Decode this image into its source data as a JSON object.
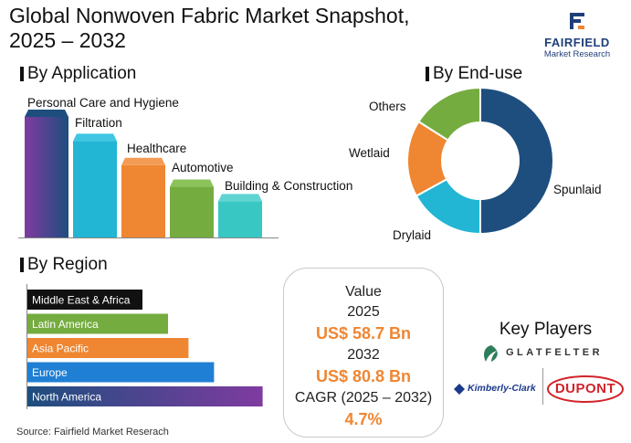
{
  "title_line1": "Global Nonwoven Fabric Market Snapshot,",
  "title_line2": "2025 – 2032",
  "logo": {
    "name": "FAIRFIELD",
    "sub": "Market Research",
    "icon": "fairfield-f-logo-icon"
  },
  "colors": {
    "navy": "#1d4e7e",
    "teal": "#22b5d4",
    "orange": "#ef8632",
    "green": "#75ac3f",
    "cyan": "#39c7c4",
    "purple": "#7f3ba0",
    "black": "#111111",
    "blue": "#1f7fd4",
    "value_orange": "#ef8632"
  },
  "chart_data": [
    {
      "type": "bar",
      "title": "By Application",
      "categories": [
        "Personal Care and Hygiene",
        "Filtration",
        "Healthcare",
        "Automotive",
        "Building & Construction"
      ],
      "values": [
        100,
        80,
        60,
        42,
        30
      ],
      "ylim": [
        0,
        100
      ],
      "grid": false,
      "legend": "none",
      "note": "relative values, unlabelled axis"
    },
    {
      "type": "pie",
      "title": "By End-use",
      "style": "donut",
      "categories": [
        "Spunlaid",
        "Drylaid",
        "Wetlaid",
        "Others"
      ],
      "values": [
        50,
        17,
        17,
        16
      ],
      "legend": "labels-outside"
    },
    {
      "type": "bar",
      "orientation": "horizontal",
      "title": "By Region",
      "categories": [
        "Middle East & Africa",
        "Latin America",
        "Asia Pacific",
        "Europe",
        "North America"
      ],
      "values": [
        45,
        55,
        63,
        73,
        92
      ],
      "xlim": [
        0,
        100
      ],
      "grid": false,
      "legend": "none",
      "note": "relative values, unlabelled axis"
    }
  ],
  "value_box": {
    "value_label": "Value",
    "year1": "2025",
    "value1": "US$ 58.7 Bn",
    "year2": "2032",
    "value2": "US$ 80.8 Bn",
    "cagr_label": "CAGR (2025 – 2032)",
    "cagr_value": "4.7%"
  },
  "key_players": {
    "title": "Key Players",
    "players": [
      "GLATFELTER",
      "Kimberly-Clark",
      "DUPONT"
    ]
  },
  "source": "Source: Fairfield Market Reserach"
}
